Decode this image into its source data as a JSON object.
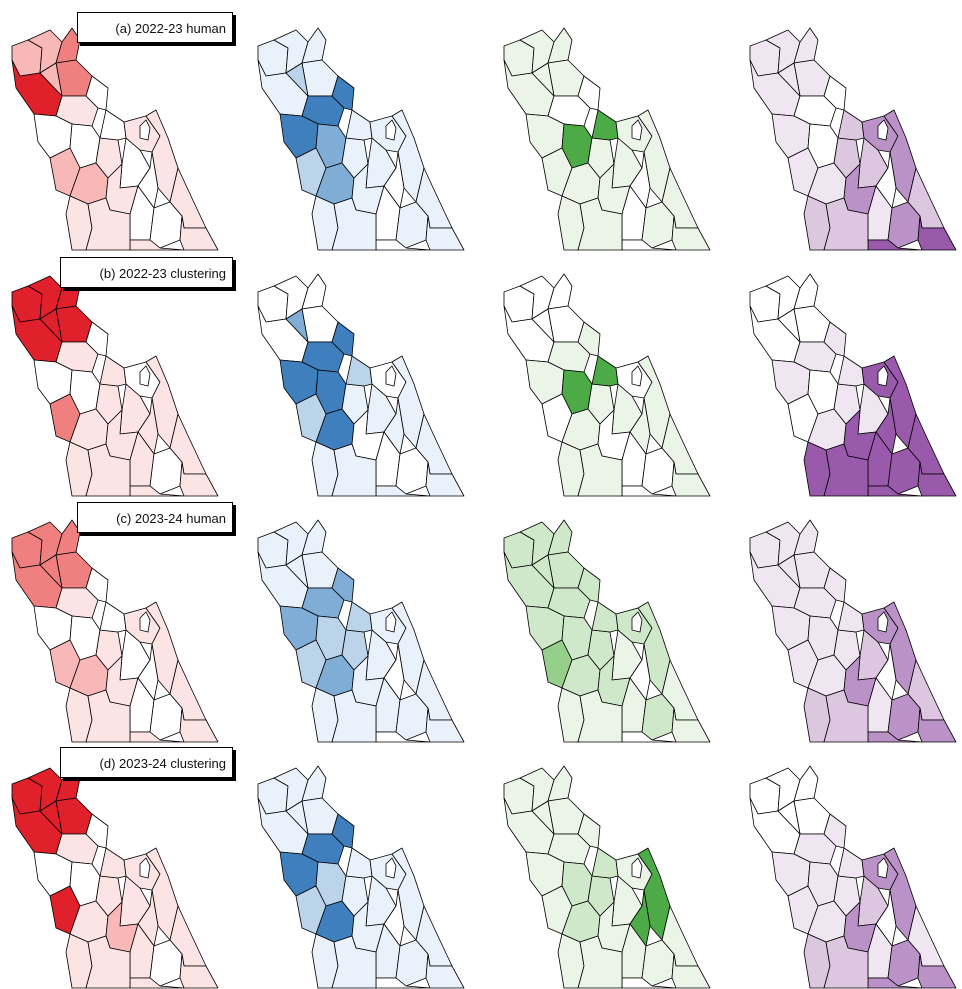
{
  "rows": [
    {
      "label": "(a) 2022-23 human"
    },
    {
      "label": "(b) 2022-23 clustering"
    },
    {
      "label": "(c) 2023-24 human"
    },
    {
      "label": "(d) 2023-24 clustering"
    }
  ],
  "palettes": {
    "red": [
      "#ffffff",
      "#fde4e4",
      "#f9b8b8",
      "#f08080",
      "#e0202a"
    ],
    "blue": [
      "#ffffff",
      "#e9f1fa",
      "#bcd4ea",
      "#7fadd6",
      "#3f7fbe"
    ],
    "green": [
      "#ffffff",
      "#eaf5e8",
      "#cfe8c9",
      "#96cf8b",
      "#4cab47"
    ],
    "purple": [
      "#ffffff",
      "#f0e6f2",
      "#dcc6e0",
      "#bb92c8",
      "#9a5aab"
    ]
  },
  "column_palettes": [
    "red",
    "blue",
    "green",
    "purple"
  ],
  "levels": [
    [
      [
        2,
        2,
        3,
        3,
        4,
        2,
        1,
        0,
        0,
        0,
        2,
        2,
        1,
        0,
        0,
        1,
        1,
        1,
        0,
        0,
        0,
        1,
        1,
        1,
        1,
        1
      ],
      [
        1,
        1,
        1,
        1,
        1,
        2,
        4,
        4,
        4,
        3,
        2,
        3,
        1,
        1,
        1,
        1,
        1,
        1,
        0,
        0,
        1,
        1,
        1,
        0,
        1,
        1
      ],
      [
        1,
        1,
        1,
        1,
        1,
        1,
        0,
        0,
        1,
        4,
        1,
        1,
        1,
        4,
        1,
        1,
        1,
        1,
        0,
        0,
        1,
        1,
        1,
        0,
        1,
        1
      ],
      [
        1,
        1,
        1,
        1,
        1,
        1,
        0,
        0,
        1,
        0,
        1,
        1,
        2,
        2,
        2,
        3,
        3,
        3,
        0,
        1,
        3,
        2,
        4,
        4,
        2,
        2
      ]
    ],
    [
      [
        4,
        4,
        4,
        4,
        4,
        4,
        1,
        0,
        0,
        0,
        3,
        1,
        1,
        1,
        1,
        1,
        0,
        1,
        1,
        1,
        0,
        1,
        1,
        1,
        1,
        1
      ],
      [
        0,
        0,
        0,
        0,
        0,
        3,
        4,
        4,
        4,
        4,
        2,
        4,
        1,
        2,
        1,
        0,
        0,
        1,
        1,
        0,
        0,
        1,
        1,
        1,
        1,
        1
      ],
      [
        0,
        0,
        0,
        0,
        0,
        0,
        1,
        1,
        1,
        4,
        0,
        1,
        1,
        4,
        1,
        0,
        0,
        1,
        1,
        0,
        0,
        1,
        1,
        0,
        1,
        1
      ],
      [
        0,
        0,
        0,
        0,
        0,
        0,
        1,
        1,
        1,
        0,
        0,
        1,
        1,
        1,
        1,
        4,
        4,
        4,
        4,
        4,
        4,
        4,
        4,
        4,
        4,
        4
      ]
    ],
    [
      [
        3,
        3,
        3,
        3,
        3,
        3,
        1,
        0,
        0,
        0,
        2,
        2,
        1,
        0,
        0,
        1,
        1,
        1,
        0,
        0,
        0,
        1,
        1,
        1,
        1,
        1
      ],
      [
        1,
        1,
        1,
        1,
        1,
        1,
        3,
        3,
        3,
        2,
        2,
        3,
        2,
        2,
        1,
        1,
        1,
        1,
        0,
        1,
        1,
        1,
        1,
        0,
        1,
        1
      ],
      [
        2,
        2,
        2,
        2,
        2,
        2,
        2,
        2,
        2,
        2,
        3,
        2,
        2,
        2,
        1,
        2,
        2,
        2,
        0,
        1,
        2,
        1,
        1,
        0,
        1,
        1
      ],
      [
        1,
        1,
        1,
        1,
        1,
        1,
        1,
        1,
        1,
        1,
        1,
        1,
        1,
        1,
        2,
        3,
        3,
        3,
        0,
        1,
        3,
        2,
        3,
        3,
        2,
        2
      ]
    ],
    [
      [
        4,
        4,
        4,
        4,
        4,
        4,
        1,
        0,
        0,
        0,
        4,
        1,
        1,
        1,
        1,
        2,
        1,
        1,
        1,
        1,
        0,
        1,
        1,
        1,
        1,
        1
      ],
      [
        1,
        1,
        1,
        1,
        1,
        1,
        4,
        4,
        4,
        2,
        2,
        4,
        1,
        1,
        1,
        1,
        1,
        1,
        0,
        1,
        1,
        1,
        1,
        0,
        1,
        1
      ],
      [
        1,
        1,
        1,
        1,
        1,
        1,
        1,
        1,
        1,
        2,
        1,
        2,
        2,
        2,
        1,
        1,
        1,
        4,
        4,
        1,
        1,
        1,
        1,
        0,
        1,
        1
      ],
      [
        0,
        0,
        0,
        0,
        0,
        0,
        1,
        1,
        1,
        1,
        1,
        1,
        1,
        1,
        2,
        3,
        3,
        3,
        0,
        1,
        3,
        1,
        3,
        3,
        2,
        2
      ]
    ]
  ]
}
